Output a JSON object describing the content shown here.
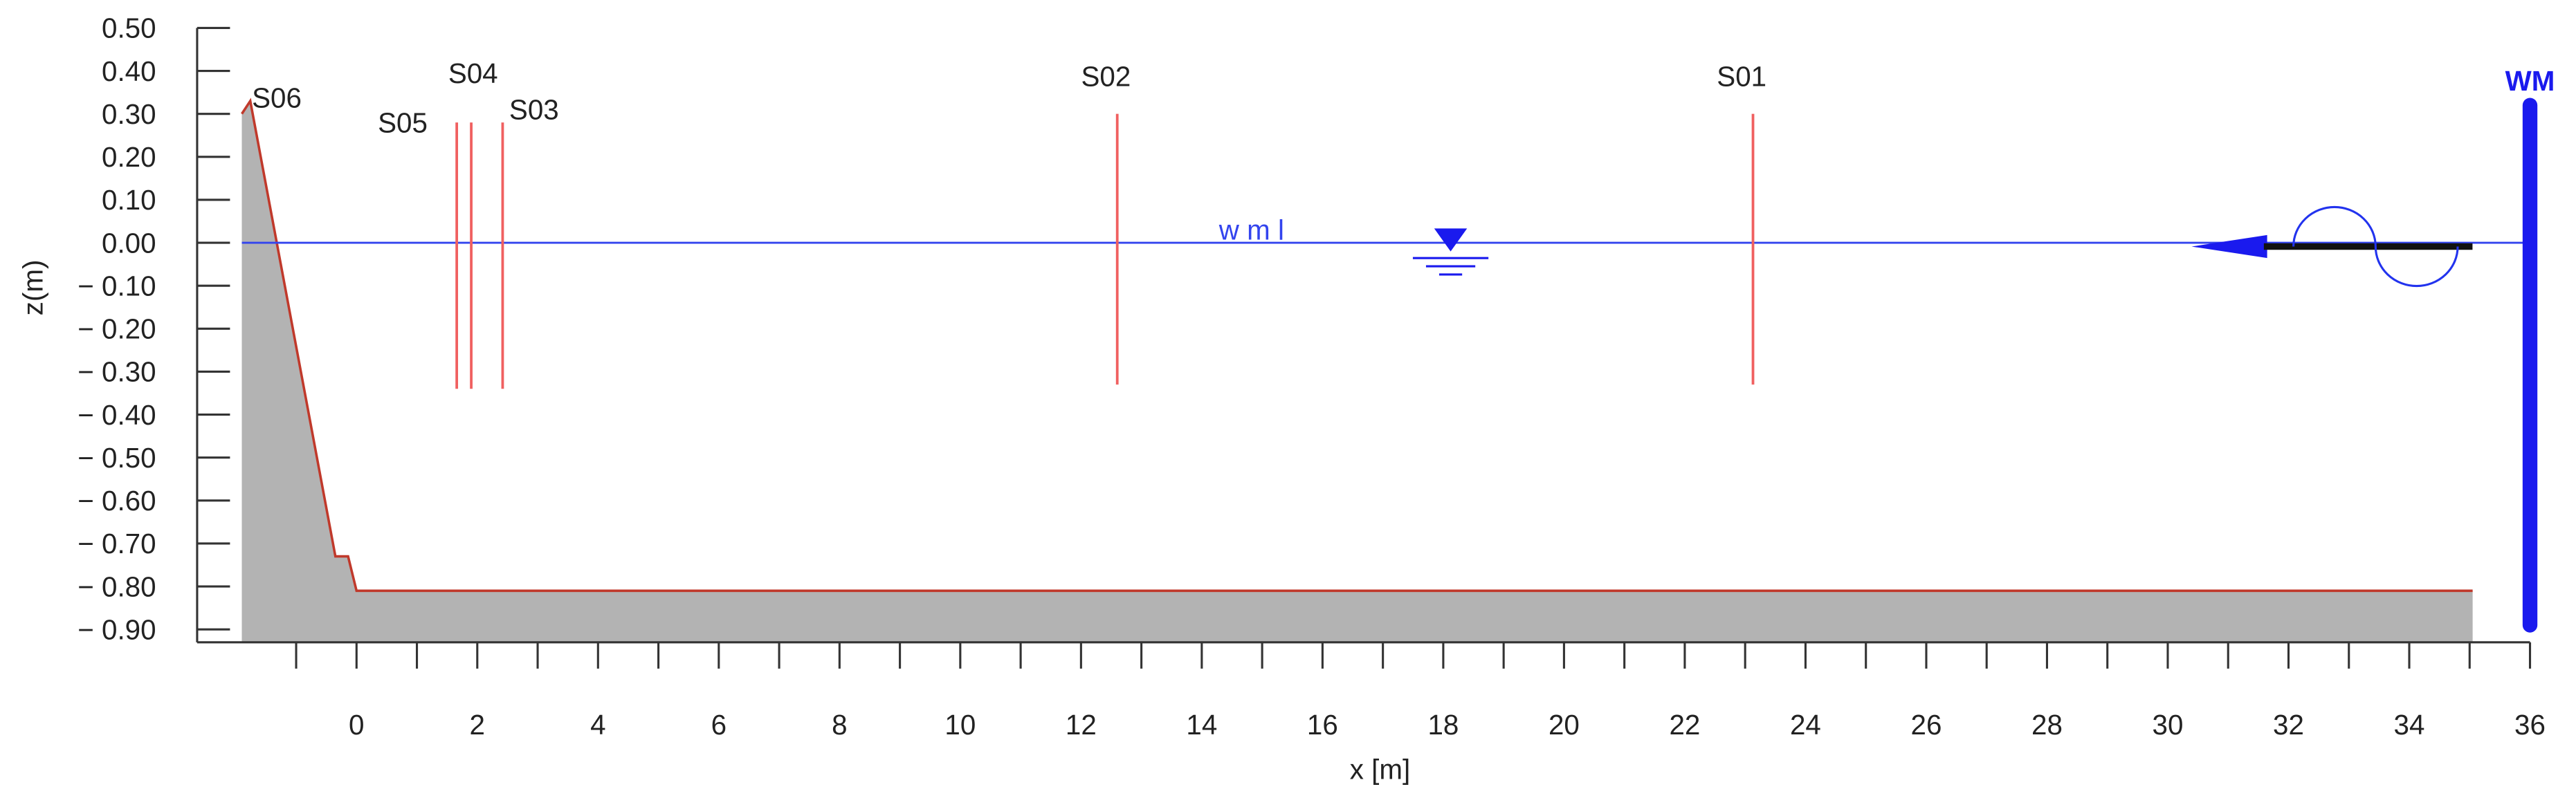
{
  "chart_data": {
    "type": "flume",
    "xlabel": "x [m]",
    "ylabel": "z(m)",
    "xlim": [
      -2.64,
      36
    ],
    "ylim": [
      -0.93,
      0.5
    ],
    "xticks": [
      0,
      2,
      4,
      6,
      8,
      10,
      12,
      14,
      16,
      18,
      20,
      22,
      24,
      26,
      28,
      30,
      32,
      34,
      36
    ],
    "xminorticks": [
      -1,
      1,
      3,
      5,
      7,
      9,
      11,
      13,
      15,
      17,
      19,
      21,
      23,
      25,
      27,
      29,
      31,
      33,
      35
    ],
    "yticks": [
      {
        "value": 0.5,
        "label": "0.50"
      },
      {
        "value": 0.4,
        "label": "0.40"
      },
      {
        "value": 0.3,
        "label": "0.30"
      },
      {
        "value": 0.2,
        "label": "0.20"
      },
      {
        "value": 0.1,
        "label": "0.10"
      },
      {
        "value": 0,
        "label": "0.00"
      },
      {
        "value": -0.1,
        "label": "− 0.10"
      },
      {
        "value": -0.2,
        "label": "− 0.20"
      },
      {
        "value": -0.3,
        "label": "− 0.30"
      },
      {
        "value": -0.4,
        "label": "− 0.40"
      },
      {
        "value": -0.5,
        "label": "− 0.50"
      },
      {
        "value": -0.6,
        "label": "− 0.60"
      },
      {
        "value": -0.7,
        "label": "− 0.70"
      },
      {
        "value": -0.8,
        "label": "− 0.80"
      },
      {
        "value": -0.9,
        "label": "− 0.90"
      }
    ],
    "profile": {
      "color": "#c0392b",
      "fill": "#b3b3b3",
      "x": [
        -1.9,
        -1.76,
        -0.35,
        -0.14,
        0,
        35.05
      ],
      "z": [
        0.3,
        0.33,
        -0.73,
        -0.73,
        -0.81,
        -0.81
      ]
    },
    "gauges": [
      {
        "name": "S05",
        "x": 1.66,
        "z": [
          -0.34,
          0.28
        ]
      },
      {
        "name": "S04",
        "x": 1.9,
        "z": [
          -0.34,
          0.28
        ]
      },
      {
        "name": "S03",
        "x": 2.42,
        "z": [
          -0.34,
          0.28
        ]
      },
      {
        "name": "S02",
        "x": 12.6,
        "z": [
          -0.33,
          0.3
        ]
      },
      {
        "name": "S01",
        "x": 23.13,
        "z": [
          -0.33,
          0.3
        ]
      }
    ],
    "gauge_color": "#f06060",
    "toe_label": "S06",
    "water_level": {
      "label": "w m l",
      "z": 0,
      "color": "#3344ee"
    },
    "wavemaker": {
      "label": "WM",
      "x": 36,
      "z": [
        -0.89,
        0.32
      ],
      "color": "#1a1aee"
    }
  }
}
